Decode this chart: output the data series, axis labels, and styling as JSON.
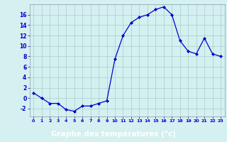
{
  "x": [
    0,
    1,
    2,
    3,
    4,
    5,
    6,
    7,
    8,
    9,
    10,
    11,
    12,
    13,
    14,
    15,
    16,
    17,
    18,
    19,
    20,
    21,
    22,
    23
  ],
  "y": [
    1,
    0,
    -1,
    -1,
    -2.2,
    -2.5,
    -1.5,
    -1.5,
    -1,
    -0.5,
    7.5,
    12,
    14.5,
    15.5,
    16,
    17,
    17.5,
    16,
    11,
    9,
    8.5,
    11.5,
    8.5,
    8
  ],
  "line_color": "#0000cc",
  "marker": "D",
  "marker_size": 2.0,
  "bg_color": "#d4f0f0",
  "grid_color": "#aacccc",
  "xlabel": "Graphe des températures (°c)",
  "xlabel_color": "#0000cc",
  "tick_color": "#0000cc",
  "yticks": [
    -2,
    0,
    2,
    4,
    6,
    8,
    10,
    12,
    14,
    16
  ],
  "ylim": [
    -3.5,
    18.0
  ],
  "xlim": [
    -0.5,
    23.5
  ],
  "bottom_bar_color": "#2244aa",
  "bottom_bar_text_color": "#ffffff"
}
